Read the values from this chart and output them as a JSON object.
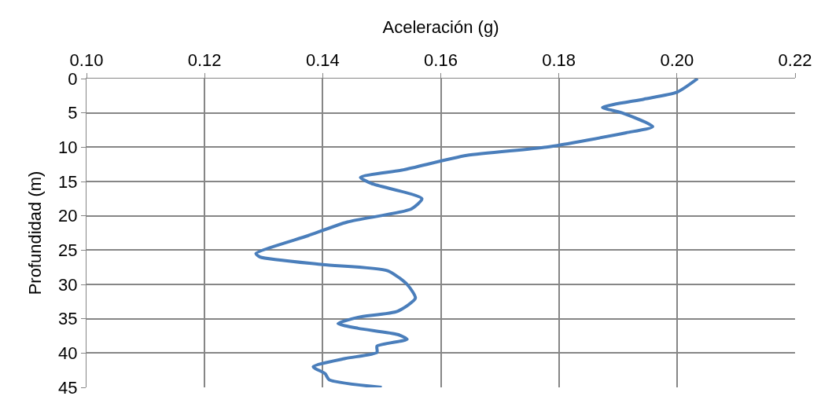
{
  "chart_data": {
    "type": "line",
    "xlabel": "Aceleración (g)",
    "ylabel": "Profundidad (m)",
    "xlim": [
      0.1,
      0.22
    ],
    "xticks": [
      {
        "value": 0.1,
        "label": "0.10"
      },
      {
        "value": 0.12,
        "label": "0.12"
      },
      {
        "value": 0.14,
        "label": "0.14"
      },
      {
        "value": 0.16,
        "label": "0.16"
      },
      {
        "value": 0.18,
        "label": "0.18"
      },
      {
        "value": 0.2,
        "label": "0.20"
      },
      {
        "value": 0.22,
        "label": "0.22"
      }
    ],
    "ylim": [
      45,
      0
    ],
    "yticks": [
      0,
      5,
      10,
      15,
      20,
      25,
      30,
      35,
      40,
      45
    ],
    "grid": true,
    "marker": "none",
    "line_style": "solid",
    "series": [
      {
        "color": "#4a7ebb",
        "x": [
          0.2035,
          0.2,
          0.1944,
          0.1874,
          0.1907,
          0.1959,
          0.1914,
          0.1779,
          0.1644,
          0.1537,
          0.1464,
          0.1483,
          0.1568,
          0.155,
          0.1442,
          0.1375,
          0.1287,
          0.1294,
          0.14,
          0.151,
          0.1543,
          0.1557,
          0.1527,
          0.146,
          0.1426,
          0.146,
          0.1527,
          0.1543,
          0.1492,
          0.1492,
          0.1438,
          0.1384,
          0.1404,
          0.1411,
          0.15
        ],
        "values": [
          0,
          2,
          3,
          4.2,
          5,
          7,
          7.9,
          10,
          11.2,
          13.3,
          14.4,
          15.3,
          17.5,
          19,
          20.9,
          22.9,
          25.5,
          26,
          27.1,
          28,
          30,
          32,
          33.9,
          34.8,
          35.7,
          36.4,
          37.3,
          38,
          39,
          39.9,
          40.8,
          42,
          43,
          43.9,
          45
        ]
      }
    ]
  }
}
